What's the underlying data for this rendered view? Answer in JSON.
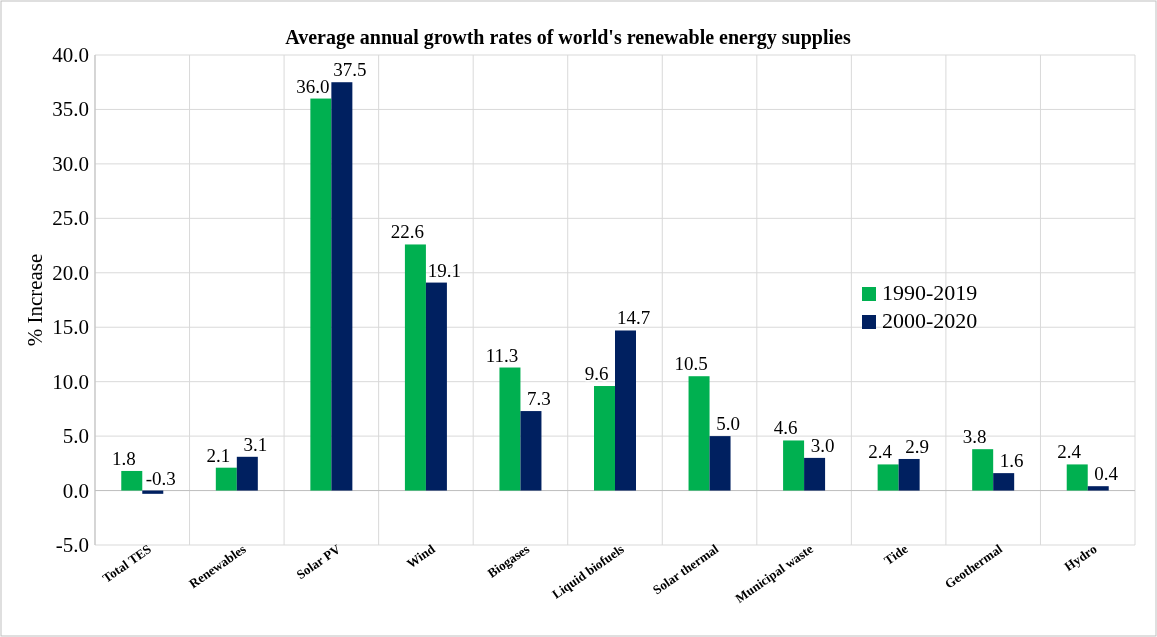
{
  "chart_data": {
    "type": "bar",
    "title": "Average annual growth rates of world's renewable energy supplies",
    "ylabel": "% Increase",
    "categories": [
      "Total TES",
      "Renewables",
      "Solar PV",
      "Wind",
      "Biogases",
      "Liquid biofuels",
      "Solar thermal",
      "Municipal waste",
      "Tide",
      "Geothermal",
      "Hydro"
    ],
    "series": [
      {
        "name": "1990-2019",
        "color": "#00b050",
        "values": [
          1.8,
          2.1,
          36.0,
          22.6,
          11.3,
          9.6,
          10.5,
          4.6,
          2.4,
          3.8,
          2.4
        ],
        "value_labels": [
          "1.8",
          "2.1",
          "36.0",
          "22.6",
          "11.3",
          "9.6",
          "10.5",
          "4.6",
          "2.4",
          "3.8",
          "2.4"
        ]
      },
      {
        "name": "2000-2020",
        "color": "#002060",
        "values": [
          -0.3,
          3.1,
          37.5,
          19.1,
          7.3,
          14.7,
          5.0,
          3.0,
          2.9,
          1.6,
          0.4
        ],
        "value_labels": [
          "-0.3",
          "3.1",
          "37.5",
          "19.1",
          "7.3",
          "14.7",
          "5.0",
          "3.0",
          "2.9",
          "1.6",
          "0.4"
        ]
      }
    ],
    "ylim": [
      -5,
      40
    ],
    "yticks": [
      {
        "value": -5,
        "label": "-5.0"
      },
      {
        "value": 0,
        "label": "0.0"
      },
      {
        "value": 5,
        "label": "5.0"
      },
      {
        "value": 10,
        "label": "10.0"
      },
      {
        "value": 15,
        "label": "15.0"
      },
      {
        "value": 20,
        "label": "20.0"
      },
      {
        "value": 25,
        "label": "25.0"
      },
      {
        "value": 30,
        "label": "30.0"
      },
      {
        "value": 35,
        "label": "35.0"
      },
      {
        "value": 40,
        "label": "40.0"
      }
    ],
    "grid": true,
    "legend": "right"
  }
}
